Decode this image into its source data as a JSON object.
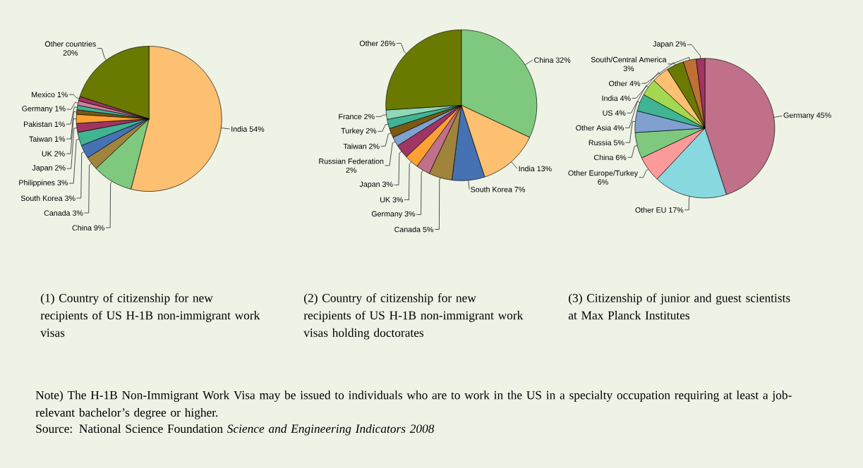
{
  "chart_data": [
    {
      "type": "pie",
      "title": "(1) Country of citizenship for new recipients of US H-1B non-immigrant work visas",
      "categories": [
        "India",
        "China",
        "Canada",
        "South Korea",
        "Philippines",
        "Japan",
        "UK",
        "Taiwan",
        "Pakistan",
        "Germany",
        "Mexico",
        "Other countries"
      ],
      "values": [
        54,
        9,
        3,
        3,
        3,
        2,
        2,
        1,
        1,
        1,
        1,
        20
      ],
      "value_labels": [
        "54%",
        "9%",
        "3%",
        "3%",
        "3%",
        "2%",
        "2%",
        "1%",
        "1%",
        "1%",
        "1%",
        "20%"
      ],
      "colors": [
        "#fdc070",
        "#7fc97f",
        "#a0843c",
        "#4672b4",
        "#40b493",
        "#a03462",
        "#ffa034",
        "#7a5a12",
        "#40b493",
        "#d07f9f",
        "#a03462",
        "#6a7a00"
      ]
    },
    {
      "type": "pie",
      "title": "(2) Country of citizenship for new recipients of US H-1B non-immigrant work visas holding doctorates",
      "categories": [
        "China",
        "India",
        "South Korea",
        "Canada",
        "Germany",
        "UK",
        "Japan",
        "Russian Federation",
        "Taiwan",
        "Turkey",
        "France",
        "Other"
      ],
      "values": [
        32,
        13,
        7,
        5,
        3,
        3,
        3,
        2,
        2,
        2,
        2,
        26
      ],
      "value_labels": [
        "32%",
        "13%",
        "7%",
        "5%",
        "3%",
        "3%",
        "3%",
        "2%",
        "2%",
        "2%",
        "2%",
        "26%"
      ],
      "colors": [
        "#7fc97f",
        "#fdc070",
        "#4672b4",
        "#a0843c",
        "#c07088",
        "#ffa034",
        "#a03462",
        "#80a0d0",
        "#7a5a12",
        "#40b493",
        "#90d8b8",
        "#6a7a00"
      ]
    },
    {
      "type": "pie",
      "title": "(3) Citizenship of junior and guest scientists at Max Planck Institutes",
      "categories": [
        "Germany",
        "Other EU",
        "Other Europe/Turkey",
        "China",
        "Russia",
        "Other Asia",
        "US",
        "India",
        "Other",
        "South/Central America",
        "Japan"
      ],
      "values": [
        45,
        17,
        6,
        6,
        5,
        4,
        4,
        4,
        4,
        3,
        2
      ],
      "value_labels": [
        "45%",
        "17%",
        "6%",
        "6%",
        "5%",
        "4%",
        "4%",
        "4%",
        "4%",
        "3%",
        "2%"
      ],
      "colors": [
        "#c07088",
        "#88d8e0",
        "#ff9a9a",
        "#7fc97f",
        "#80a0d0",
        "#40b493",
        "#a4d850",
        "#fdc070",
        "#6a7a00",
        "#c07034",
        "#a03462"
      ],
      "annotations": [
        "Note) The H-1B Non-Immigrant Work Visa may be issued to individuals who are to work in the US in a specialty occupation requiring at least a job-relevant bachelor’s degree or higher.",
        "Source: National Science Foundation *Science and Engineering Indicators 2008*"
      ]
    }
  ]
}
